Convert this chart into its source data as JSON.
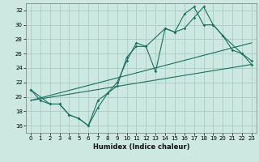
{
  "title": "",
  "xlabel": "Humidex (Indice chaleur)",
  "ylabel": "",
  "bg_color": "#cce8e0",
  "grid_color": "#aaccc4",
  "line_color": "#1a7060",
  "xlim": [
    -0.5,
    23.5
  ],
  "ylim": [
    15,
    33
  ],
  "xticks": [
    0,
    1,
    2,
    3,
    4,
    5,
    6,
    7,
    8,
    9,
    10,
    11,
    12,
    13,
    14,
    15,
    16,
    17,
    18,
    19,
    20,
    21,
    22,
    23
  ],
  "yticks": [
    16,
    18,
    20,
    22,
    24,
    26,
    28,
    30,
    32
  ],
  "series1_x": [
    0,
    1,
    2,
    3,
    4,
    5,
    6,
    7,
    8,
    9,
    10,
    11,
    12,
    13,
    14,
    15,
    16,
    17,
    18,
    19,
    20,
    21,
    22,
    23
  ],
  "series1_y": [
    21.0,
    19.5,
    19.0,
    19.0,
    17.5,
    17.0,
    16.0,
    18.5,
    20.5,
    21.5,
    25.5,
    27.0,
    27.0,
    23.5,
    29.5,
    29.0,
    29.5,
    31.0,
    32.5,
    30.0,
    28.5,
    26.5,
    26.0,
    25.0
  ],
  "series2_x": [
    0,
    2,
    3,
    4,
    5,
    6,
    7,
    8,
    9,
    10,
    11,
    12,
    14,
    15,
    16,
    17,
    18,
    19,
    20,
    22,
    23
  ],
  "series2_y": [
    21.0,
    19.0,
    19.0,
    17.5,
    17.0,
    16.0,
    19.5,
    20.5,
    22.0,
    25.0,
    27.5,
    27.0,
    29.5,
    29.0,
    31.5,
    32.5,
    30.0,
    30.0,
    28.5,
    26.0,
    24.5
  ],
  "trend1_x": [
    0,
    23
  ],
  "trend1_y": [
    19.5,
    24.5
  ],
  "trend2_x": [
    0,
    23
  ],
  "trend2_y": [
    19.5,
    27.5
  ]
}
